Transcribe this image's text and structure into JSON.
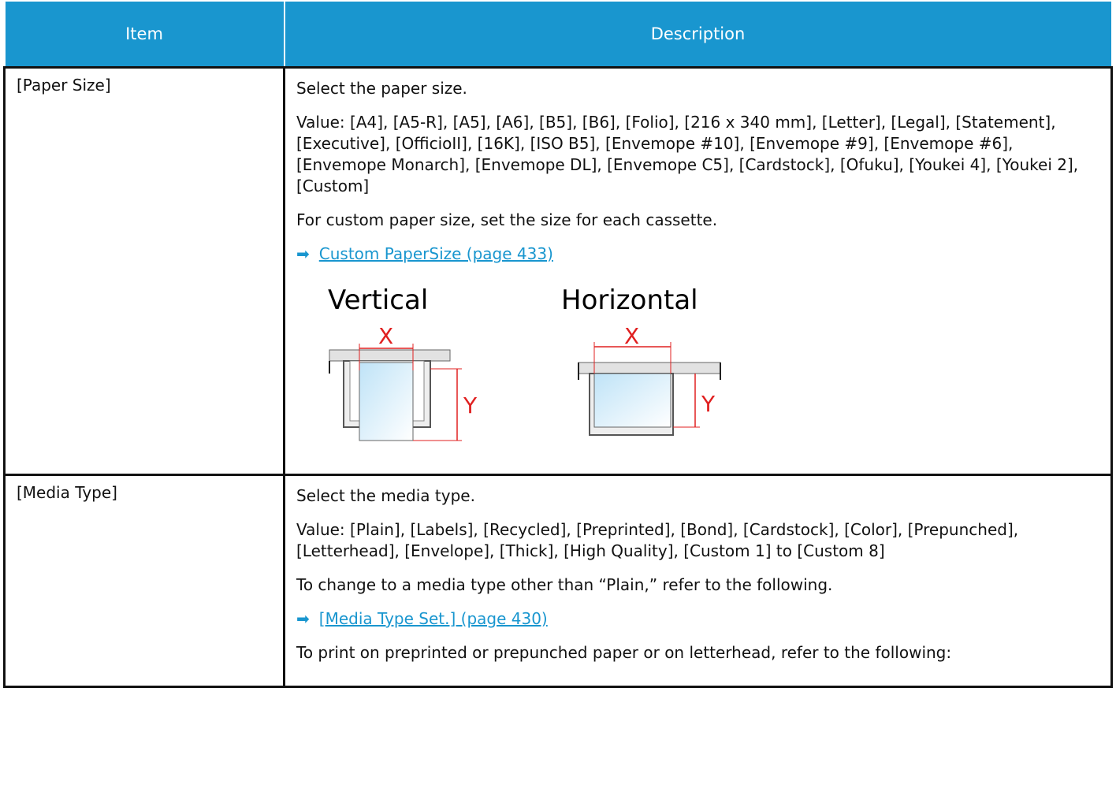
{
  "table": {
    "columns": [
      "Item",
      "Description"
    ],
    "rows": [
      {
        "item": "[Paper Size]",
        "content": [
          {
            "p": "Select the paper size."
          },
          {
            "p": "Value: [A4], [A5-R], [A5], [A6], [B5], [B6], [Folio], [216 x 340 mm], [Letter], [Legal], [Statement], [Executive], [OfficioII], [16K], [ISO B5], [Envemope #10], [Envemope #9], [Envemope #6], [Envemope Monarch], [Envemope DL], [Envemope C5], [Cardstock], [Ofuku], [Youkei 4], [Youkei 2], [Custom]"
          },
          {
            "p": "For custom paper size, set the size for each cassette."
          },
          {
            "link": "Custom PaperSize (page 433)"
          }
        ],
        "diagram": {
          "panels": [
            {
              "label": "Vertical",
              "x": "X",
              "y": "Y"
            },
            {
              "label": "Horizontal",
              "x": "X",
              "y": "Y"
            }
          ]
        }
      },
      {
        "item": "[Media Type]",
        "content": [
          {
            "p": "Select the media type."
          },
          {
            "p": "Value: [Plain], [Labels], [Recycled], [Preprinted], [Bond], [Cardstock], [Color], [Prepunched], [Letterhead], [Envelope], [Thick], [High Quality], [Custom 1] to [Custom 8]"
          },
          {
            "p": "To change to a media type other than “Plain,” refer to the following."
          },
          {
            "link": "[Media Type Set.] (page 430)"
          },
          {
            "p": "To print on preprinted or prepunched paper or on letterhead, refer to the following:"
          }
        ]
      }
    ]
  }
}
